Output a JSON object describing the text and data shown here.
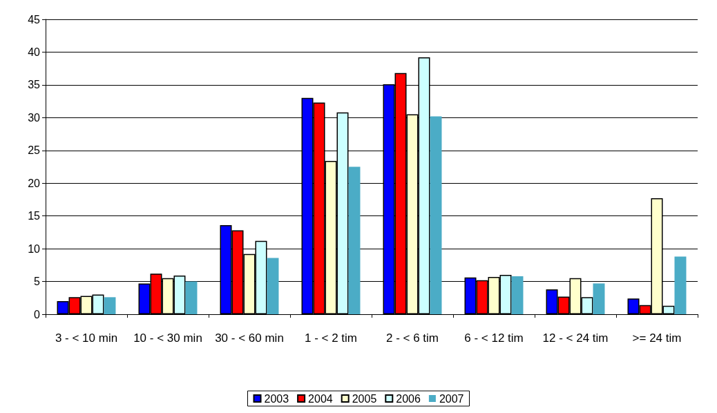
{
  "chart_data": {
    "type": "bar",
    "categories": [
      "3 - < 10 min",
      "10 - < 30 min",
      "30 - < 60 min",
      "1 - < 2 tim",
      "2 - < 6 tim",
      "6 - < 12 tim",
      "12 - < 24 tim",
      ">= 24 tim"
    ],
    "series": [
      {
        "name": "2003",
        "color": "#0000ff",
        "values": [
          2.0,
          4.7,
          13.6,
          33.0,
          35.1,
          5.6,
          3.8,
          2.4
        ]
      },
      {
        "name": "2004",
        "color": "#ff0000",
        "values": [
          2.6,
          6.2,
          12.8,
          32.3,
          36.8,
          5.2,
          2.7,
          1.4
        ]
      },
      {
        "name": "2005",
        "color": "#ffffcc",
        "values": [
          2.8,
          5.5,
          9.2,
          23.4,
          30.5,
          5.7,
          5.5,
          17.7
        ]
      },
      {
        "name": "2006",
        "color": "#ccffff",
        "values": [
          3.0,
          5.9,
          11.2,
          30.8,
          39.2,
          6.0,
          2.6,
          1.3
        ]
      },
      {
        "name": "2007",
        "color": "#4bacc6",
        "values": [
          2.6,
          5.0,
          8.6,
          22.5,
          30.2,
          5.8,
          4.7,
          8.8
        ]
      }
    ],
    "ylim": [
      0,
      45
    ],
    "yticks": [
      0,
      5,
      10,
      15,
      20,
      25,
      30,
      35,
      40,
      45
    ],
    "grid": "y",
    "legend": "bottom"
  }
}
